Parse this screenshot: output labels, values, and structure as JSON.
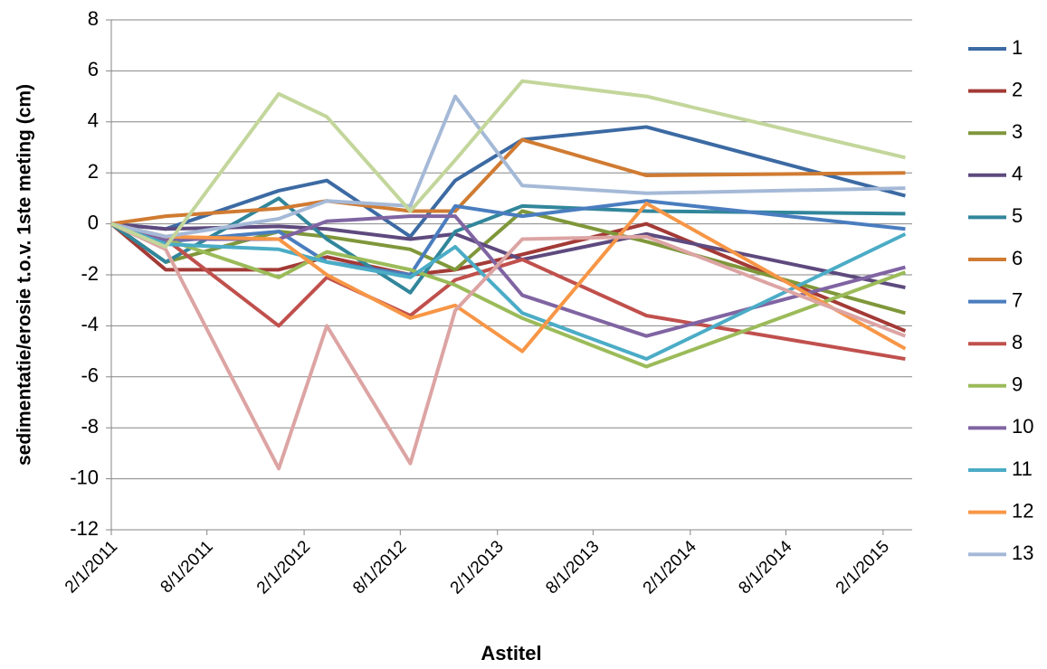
{
  "chart_data": {
    "type": "line",
    "xlabel": "Astitel",
    "ylabel": "sedimentatie/erosie t.o.v. 1ste meting (cm)",
    "x": [
      "2/1/2011",
      "5/15/2011",
      "12/15/2011",
      "3/15/2012",
      "8/20/2012",
      "11/13/2012",
      "3/20/2013",
      "11/10/2013",
      "3/15/2015"
    ],
    "xlim": [
      "2/1/2011",
      "3/28/2015"
    ],
    "xticks": [
      "2/1/2011",
      "8/1/2011",
      "2/1/2012",
      "8/1/2012",
      "2/1/2013",
      "8/1/2013",
      "2/1/2014",
      "8/1/2014",
      "2/1/2015"
    ],
    "ylim": [
      -12,
      8
    ],
    "yticks": [
      -12,
      -10,
      -8,
      -6,
      -4,
      -2,
      0,
      2,
      4,
      6,
      8
    ],
    "grid": true,
    "legend": "right",
    "series": [
      {
        "name": "1",
        "color": "#3c6aa3",
        "values": [
          0,
          -0.2,
          1.3,
          1.7,
          -0.5,
          1.7,
          3.3,
          3.8,
          1.1
        ]
      },
      {
        "name": "2",
        "color": "#a33a36",
        "values": [
          0,
          -1.8,
          -1.8,
          -1.3,
          -2.0,
          -1.8,
          -1.2,
          0.0,
          -4.2
        ]
      },
      {
        "name": "3",
        "color": "#7f973a",
        "values": [
          0,
          -1.5,
          -0.3,
          -0.5,
          -1.0,
          -1.8,
          0.5,
          -0.7,
          -3.5
        ]
      },
      {
        "name": "4",
        "color": "#5e4a7e",
        "values": [
          0,
          -0.2,
          -0.1,
          -0.2,
          -0.6,
          -0.4,
          -1.4,
          -0.4,
          -2.5
        ]
      },
      {
        "name": "5",
        "color": "#31869b",
        "values": [
          0,
          -1.5,
          1.0,
          -0.6,
          -2.7,
          -0.3,
          0.7,
          0.5,
          0.4
        ]
      },
      {
        "name": "6",
        "color": "#d07b32",
        "values": [
          0,
          0.3,
          0.6,
          0.9,
          0.5,
          0.5,
          3.3,
          1.9,
          2.0
        ]
      },
      {
        "name": "7",
        "color": "#4a7dbf",
        "values": [
          0,
          -0.7,
          -0.3,
          -1.5,
          -2.0,
          0.7,
          0.3,
          0.9,
          -0.2
        ]
      },
      {
        "name": "8",
        "color": "#c0504d",
        "values": [
          0,
          -0.6,
          -4.0,
          -2.1,
          -3.6,
          -2.2,
          -1.4,
          -3.6,
          -5.3
        ]
      },
      {
        "name": "9",
        "color": "#9bbb59",
        "values": [
          0,
          -0.6,
          -2.1,
          -1.1,
          -1.8,
          -2.4,
          -3.7,
          -5.6,
          -1.9
        ]
      },
      {
        "name": "10",
        "color": "#8064a2",
        "values": [
          0,
          -0.6,
          -0.6,
          0.1,
          0.3,
          0.3,
          -2.8,
          -4.4,
          -1.7
        ]
      },
      {
        "name": "11",
        "color": "#4bacc6",
        "values": [
          0,
          -0.8,
          -1.0,
          -1.5,
          -2.1,
          -0.9,
          -3.5,
          -5.3,
          -0.4
        ]
      },
      {
        "name": "12",
        "color": "#f79646",
        "values": [
          0,
          -0.5,
          -0.6,
          -2.0,
          -3.7,
          -3.2,
          -5.0,
          0.8,
          -4.9
        ]
      },
      {
        "name": "13",
        "color": "#a5b9d7",
        "values": [
          0,
          -0.5,
          0.2,
          0.9,
          0.7,
          5.0,
          1.5,
          1.2,
          1.4
        ]
      },
      {
        "name": null,
        "color": "#dca4a3",
        "values": [
          0,
          -1.0,
          -9.6,
          -4.0,
          -9.4,
          -3.4,
          -0.6,
          -0.5,
          -4.4
        ]
      },
      {
        "name": null,
        "color": "#c3d69b",
        "values": [
          0,
          -0.9,
          5.1,
          4.2,
          0.5,
          2.5,
          5.6,
          5.0,
          2.6
        ]
      }
    ]
  }
}
